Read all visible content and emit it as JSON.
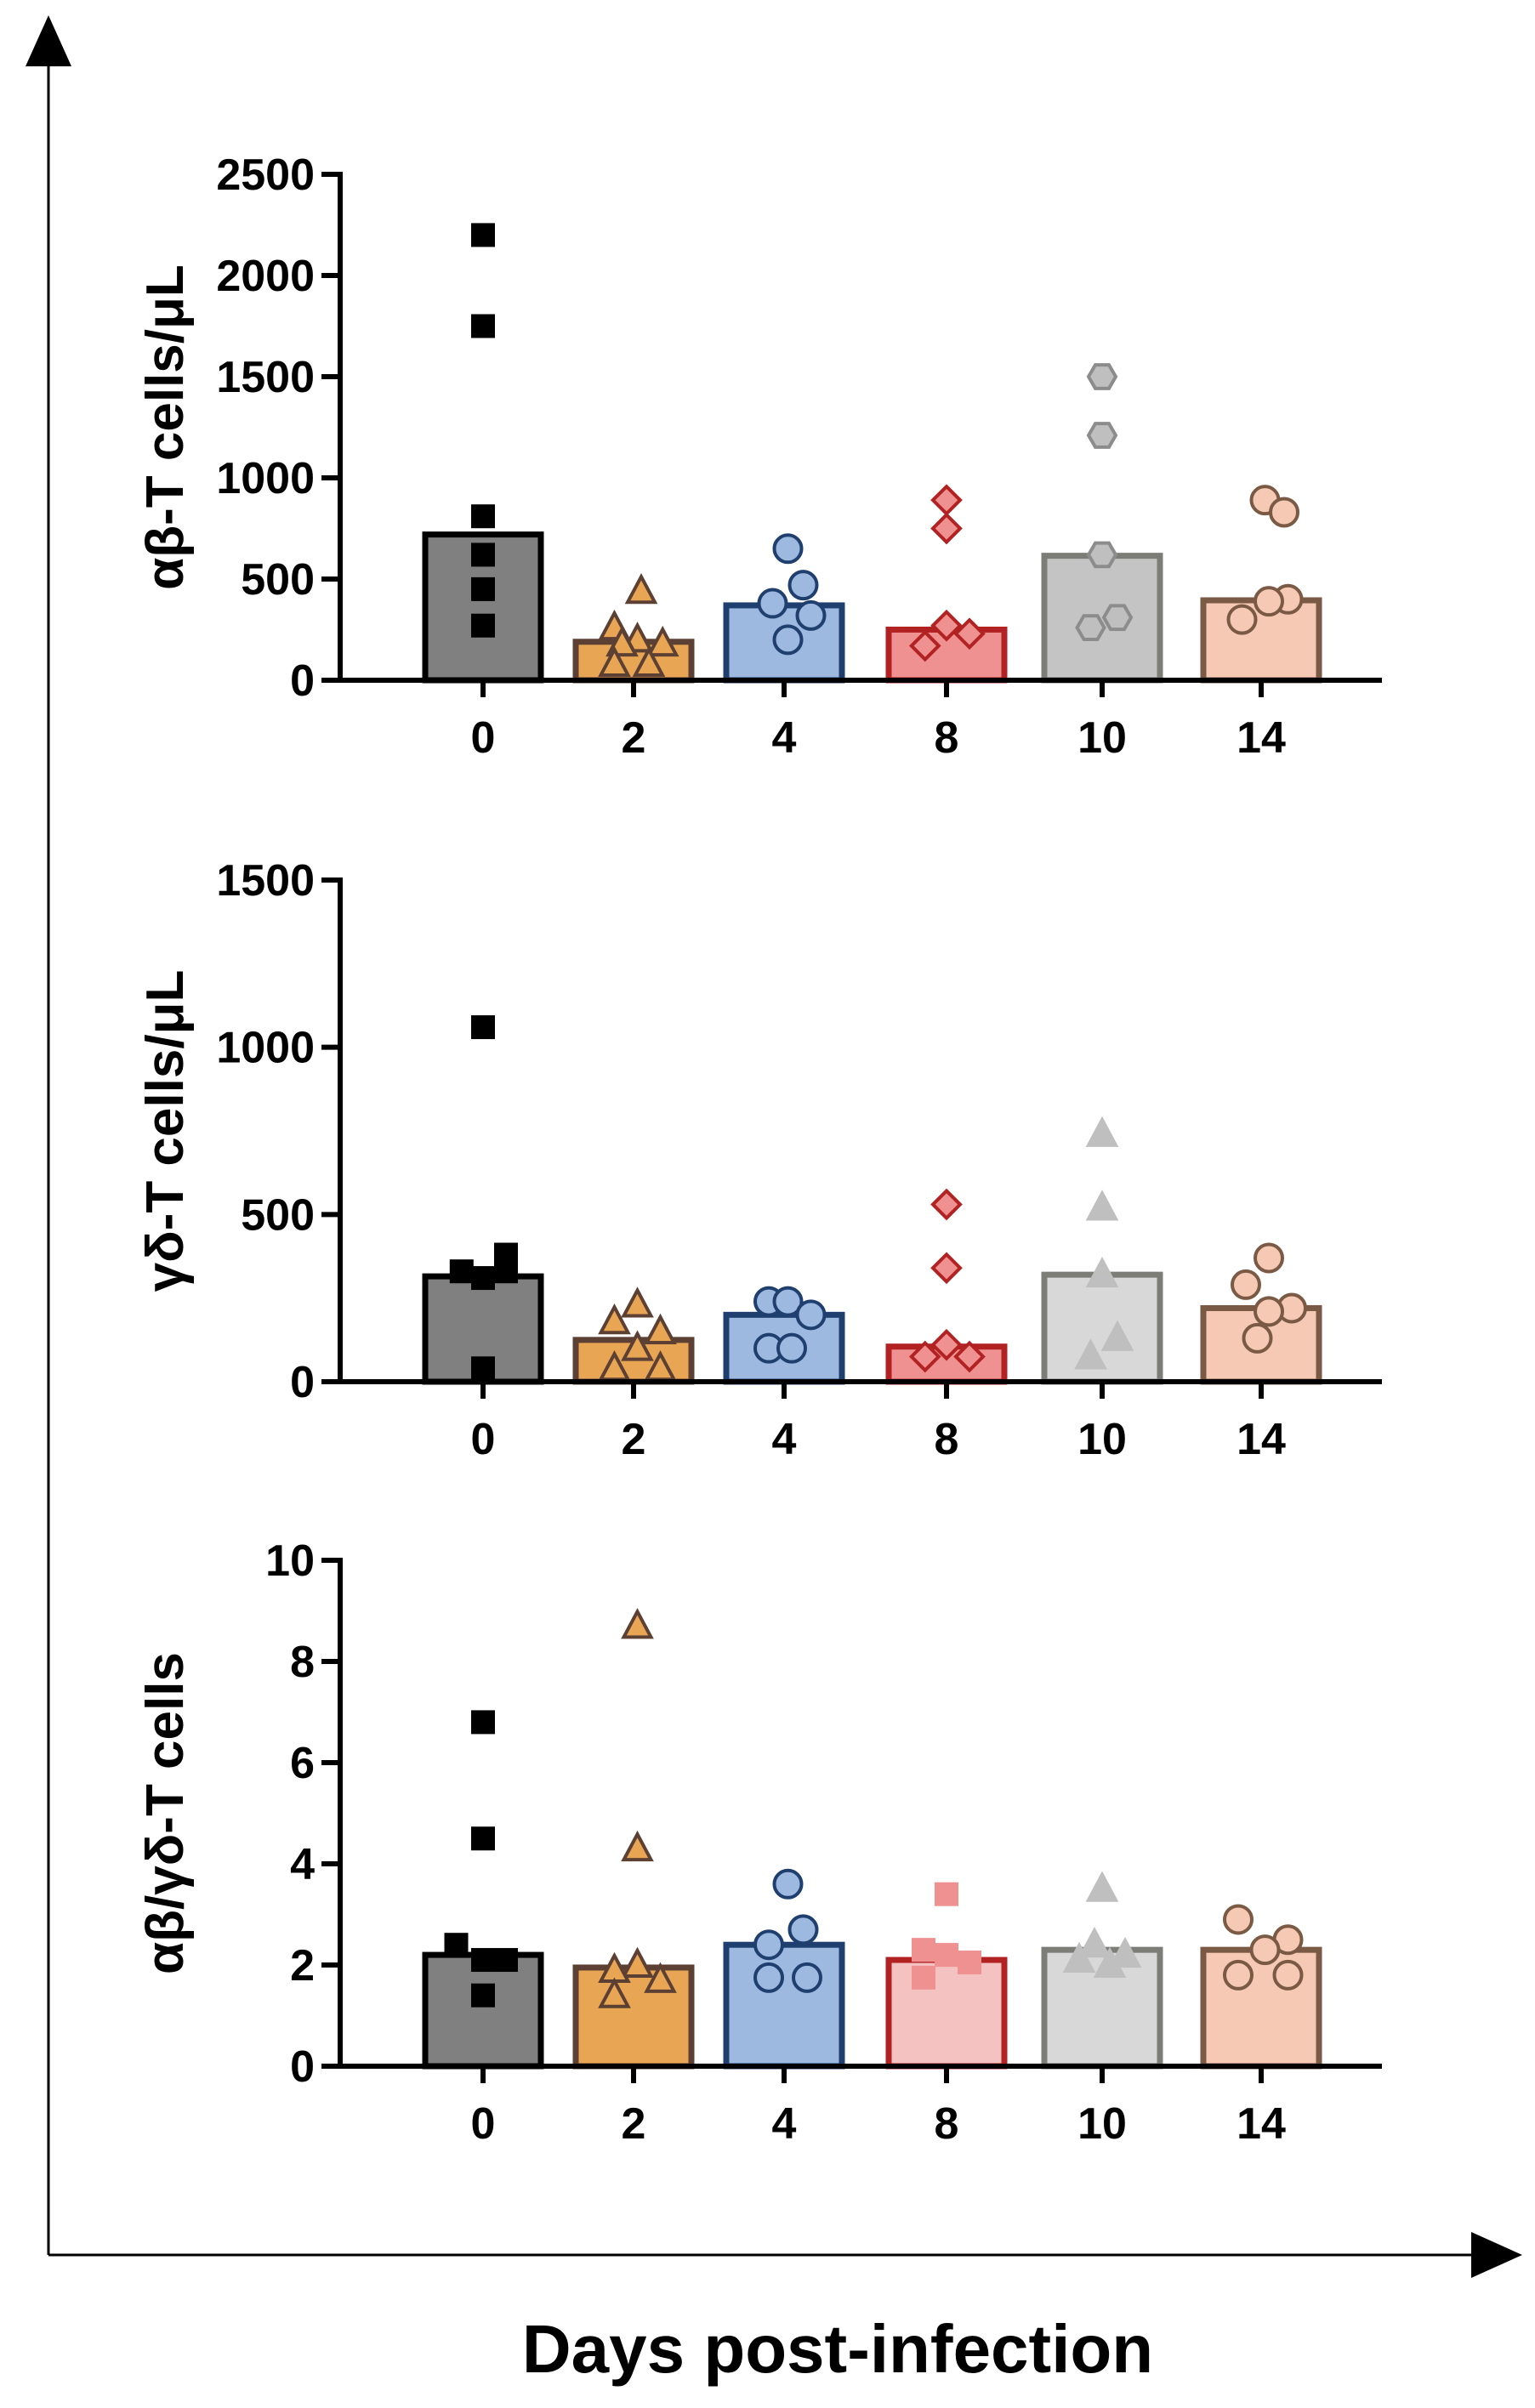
{
  "figure": {
    "xlabel": "Days post-infection"
  },
  "chart_data": [
    {
      "type": "bar",
      "ylabel": "αβ-T cells/μL",
      "categories": [
        "0",
        "2",
        "4",
        "8",
        "10",
        "14"
      ],
      "ylim": [
        0,
        2500
      ],
      "yticks": [
        0,
        500,
        1000,
        1500,
        2000,
        2500
      ],
      "ytick_labels": [
        "0",
        "500",
        "1000",
        "1500",
        "2000",
        "2500"
      ],
      "means": [
        720,
        190,
        370,
        250,
        615,
        395
      ],
      "groups": [
        {
          "day": "0",
          "fill": "#808080",
          "stroke": "#000000",
          "marker": "square",
          "marker_fill": "#000000",
          "marker_stroke": "#000000",
          "points": [
            {
              "dx": 0,
              "y": 2200
            },
            {
              "dx": 0,
              "y": 1750
            },
            {
              "dx": 0,
              "y": 810
            },
            {
              "dx": 0,
              "y": 620
            },
            {
              "dx": 0,
              "y": 450
            },
            {
              "dx": 0,
              "y": 270
            }
          ]
        },
        {
          "day": "2",
          "fill": "#E8A553",
          "stroke": "#5C4033",
          "marker": "triangle",
          "marker_fill": "#E8A553",
          "marker_stroke": "#5C4033",
          "points": [
            {
              "dx": 0.1,
              "y": 440
            },
            {
              "dx": -0.25,
              "y": 260
            },
            {
              "dx": 0.05,
              "y": 200
            },
            {
              "dx": -0.15,
              "y": 180
            },
            {
              "dx": 0.38,
              "y": 180
            },
            {
              "dx": -0.25,
              "y": 80
            },
            {
              "dx": 0.2,
              "y": 80
            }
          ]
        },
        {
          "day": "4",
          "fill": "#9DB9E0",
          "stroke": "#1F3F6E",
          "marker": "circle",
          "marker_fill": "#9DB9E0",
          "marker_stroke": "#1F3F6E",
          "points": [
            {
              "dx": 0.05,
              "y": 650
            },
            {
              "dx": 0.25,
              "y": 470
            },
            {
              "dx": -0.15,
              "y": 380
            },
            {
              "dx": 0.35,
              "y": 320
            },
            {
              "dx": 0.05,
              "y": 200
            }
          ]
        },
        {
          "day": "8",
          "fill": "#EF9191",
          "stroke": "#B22222",
          "marker": "diamond",
          "marker_fill": "#EF9191",
          "marker_stroke": "#B22222",
          "points": [
            {
              "dx": 0,
              "y": 890
            },
            {
              "dx": 0,
              "y": 750
            },
            {
              "dx": 0,
              "y": 270
            },
            {
              "dx": 0.3,
              "y": 230
            },
            {
              "dx": -0.28,
              "y": 170
            }
          ]
        },
        {
          "day": "10",
          "fill": "#C4C4C4",
          "stroke": "#7D7D78",
          "marker": "hexagon",
          "marker_fill": "#BFBFBF",
          "marker_stroke": "#8C8C8C",
          "points": [
            {
              "dx": 0,
              "y": 1500
            },
            {
              "dx": 0,
              "y": 1210
            },
            {
              "dx": 0,
              "y": 620
            },
            {
              "dx": 0.2,
              "y": 310
            },
            {
              "dx": -0.15,
              "y": 260
            }
          ]
        },
        {
          "day": "14",
          "fill": "#F5C9B4",
          "stroke": "#7A5A44",
          "marker": "circle",
          "marker_fill": "#F5C9B4",
          "marker_stroke": "#7A5A44",
          "points": [
            {
              "dx": 0.05,
              "y": 890
            },
            {
              "dx": 0.3,
              "y": 830
            },
            {
              "dx": -0.25,
              "y": 300
            },
            {
              "dx": 0.35,
              "y": 400
            },
            {
              "dx": 0.1,
              "y": 390
            }
          ]
        }
      ]
    },
    {
      "type": "bar",
      "ylabel": "γδ-T cells/μL",
      "categories": [
        "0",
        "2",
        "4",
        "8",
        "10",
        "14"
      ],
      "ylim": [
        0,
        1500
      ],
      "yticks": [
        0,
        500,
        1000,
        1500
      ],
      "ytick_labels": [
        "0",
        "500",
        "1000",
        "1500"
      ],
      "means": [
        315,
        125,
        200,
        105,
        320,
        220
      ],
      "groups": [
        {
          "day": "0",
          "fill": "#808080",
          "stroke": "#000000",
          "marker": "square",
          "marker_fill": "#000000",
          "marker_stroke": "#000000",
          "points": [
            {
              "dx": 0,
              "y": 1060
            },
            {
              "dx": 0.3,
              "y": 380
            },
            {
              "dx": -0.28,
              "y": 330
            },
            {
              "dx": 0.3,
              "y": 330
            },
            {
              "dx": 0,
              "y": 310
            },
            {
              "dx": 0,
              "y": 40
            }
          ]
        },
        {
          "day": "2",
          "fill": "#E8A553",
          "stroke": "#5C4033",
          "marker": "triangle",
          "marker_fill": "#E8A553",
          "marker_stroke": "#5C4033",
          "points": [
            {
              "dx": 0.05,
              "y": 230
            },
            {
              "dx": -0.25,
              "y": 180
            },
            {
              "dx": 0.35,
              "y": 150
            },
            {
              "dx": 0.05,
              "y": 100
            },
            {
              "dx": -0.25,
              "y": 40
            },
            {
              "dx": 0.35,
              "y": 40
            }
          ]
        },
        {
          "day": "4",
          "fill": "#9DB9E0",
          "stroke": "#1F3F6E",
          "marker": "circle",
          "marker_fill": "#9DB9E0",
          "marker_stroke": "#1F3F6E",
          "points": [
            {
              "dx": -0.2,
              "y": 240
            },
            {
              "dx": 0.05,
              "y": 240
            },
            {
              "dx": 0.35,
              "y": 200
            },
            {
              "dx": -0.2,
              "y": 100
            },
            {
              "dx": 0.1,
              "y": 100
            }
          ]
        },
        {
          "day": "8",
          "fill": "#EF9191",
          "stroke": "#B22222",
          "marker": "diamond",
          "marker_fill": "#EF9191",
          "marker_stroke": "#B22222",
          "points": [
            {
              "dx": 0,
              "y": 530
            },
            {
              "dx": 0,
              "y": 340
            },
            {
              "dx": 0,
              "y": 110
            },
            {
              "dx": -0.28,
              "y": 75
            },
            {
              "dx": 0.3,
              "y": 75
            }
          ]
        },
        {
          "day": "10",
          "fill": "#D8D8D8",
          "stroke": "#7D7D78",
          "marker": "triangle",
          "marker_fill": "#BFBFBF",
          "marker_stroke": "#BFBFBF",
          "points": [
            {
              "dx": 0,
              "y": 740
            },
            {
              "dx": 0,
              "y": 520
            },
            {
              "dx": 0,
              "y": 320
            },
            {
              "dx": 0.2,
              "y": 130
            },
            {
              "dx": -0.15,
              "y": 75
            }
          ]
        },
        {
          "day": "14",
          "fill": "#F5C9B4",
          "stroke": "#7A5A44",
          "marker": "circle",
          "marker_fill": "#F5C9B4",
          "marker_stroke": "#7A5A44",
          "points": [
            {
              "dx": 0.1,
              "y": 370
            },
            {
              "dx": -0.2,
              "y": 290
            },
            {
              "dx": 0.4,
              "y": 220
            },
            {
              "dx": 0.1,
              "y": 210
            },
            {
              "dx": -0.05,
              "y": 130
            }
          ]
        }
      ]
    },
    {
      "type": "bar",
      "ylabel": "αβ/γδ-T cells",
      "categories": [
        "0",
        "2",
        "4",
        "8",
        "10",
        "14"
      ],
      "ylim": [
        0,
        10
      ],
      "yticks": [
        0,
        2,
        4,
        6,
        8,
        10
      ],
      "ytick_labels": [
        "0",
        "2",
        "4",
        "6",
        "8",
        "10"
      ],
      "means": [
        2.2,
        1.95,
        2.4,
        2.1,
        2.3,
        2.3
      ],
      "groups": [
        {
          "day": "0",
          "fill": "#808080",
          "stroke": "#000000",
          "marker": "square",
          "marker_fill": "#000000",
          "marker_stroke": "#000000",
          "points": [
            {
              "dx": 0,
              "y": 6.8
            },
            {
              "dx": 0,
              "y": 4.5
            },
            {
              "dx": -0.35,
              "y": 2.4
            },
            {
              "dx": 0,
              "y": 2.1
            },
            {
              "dx": 0.3,
              "y": 2.1
            },
            {
              "dx": 0,
              "y": 1.4
            }
          ]
        },
        {
          "day": "2",
          "fill": "#E8A553",
          "stroke": "#5C4033",
          "marker": "triangle",
          "marker_fill": "#E8A553",
          "marker_stroke": "#5C4033",
          "points": [
            {
              "dx": 0.05,
              "y": 8.7
            },
            {
              "dx": 0.05,
              "y": 4.3
            },
            {
              "dx": 0.05,
              "y": 2.0
            },
            {
              "dx": -0.25,
              "y": 1.9
            },
            {
              "dx": 0.35,
              "y": 1.7
            },
            {
              "dx": -0.25,
              "y": 1.4
            }
          ]
        },
        {
          "day": "4",
          "fill": "#9DB9E0",
          "stroke": "#1F3F6E",
          "marker": "circle",
          "marker_fill": "#9DB9E0",
          "marker_stroke": "#1F3F6E",
          "points": [
            {
              "dx": 0.05,
              "y": 3.6
            },
            {
              "dx": 0.25,
              "y": 2.7
            },
            {
              "dx": -0.2,
              "y": 2.4
            },
            {
              "dx": -0.2,
              "y": 1.75
            },
            {
              "dx": 0.3,
              "y": 1.75
            }
          ]
        },
        {
          "day": "8",
          "fill": "#F5C2C2",
          "stroke": "#B22222",
          "marker": "square",
          "marker_fill": "#EF9191",
          "marker_stroke": "#EF9191",
          "points": [
            {
              "dx": 0,
              "y": 3.4
            },
            {
              "dx": -0.3,
              "y": 2.3
            },
            {
              "dx": 0,
              "y": 2.2
            },
            {
              "dx": 0.3,
              "y": 2.05
            },
            {
              "dx": -0.3,
              "y": 1.75
            }
          ]
        },
        {
          "day": "10",
          "fill": "#D8D8D8",
          "stroke": "#7D7D78",
          "marker": "triangle",
          "marker_fill": "#BFBFBF",
          "marker_stroke": "#BFBFBF",
          "points": [
            {
              "dx": 0,
              "y": 3.5
            },
            {
              "dx": -0.1,
              "y": 2.4
            },
            {
              "dx": 0.3,
              "y": 2.2
            },
            {
              "dx": -0.3,
              "y": 2.1
            },
            {
              "dx": 0.1,
              "y": 2.0
            }
          ]
        },
        {
          "day": "14",
          "fill": "#F5C9B4",
          "stroke": "#7A5A44",
          "marker": "circle",
          "marker_fill": "#F5C9B4",
          "marker_stroke": "#7A5A44",
          "points": [
            {
              "dx": -0.3,
              "y": 2.9
            },
            {
              "dx": 0.35,
              "y": 2.5
            },
            {
              "dx": 0.05,
              "y": 2.3
            },
            {
              "dx": -0.3,
              "y": 1.8
            },
            {
              "dx": 0.35,
              "y": 1.8
            }
          ]
        }
      ]
    }
  ]
}
